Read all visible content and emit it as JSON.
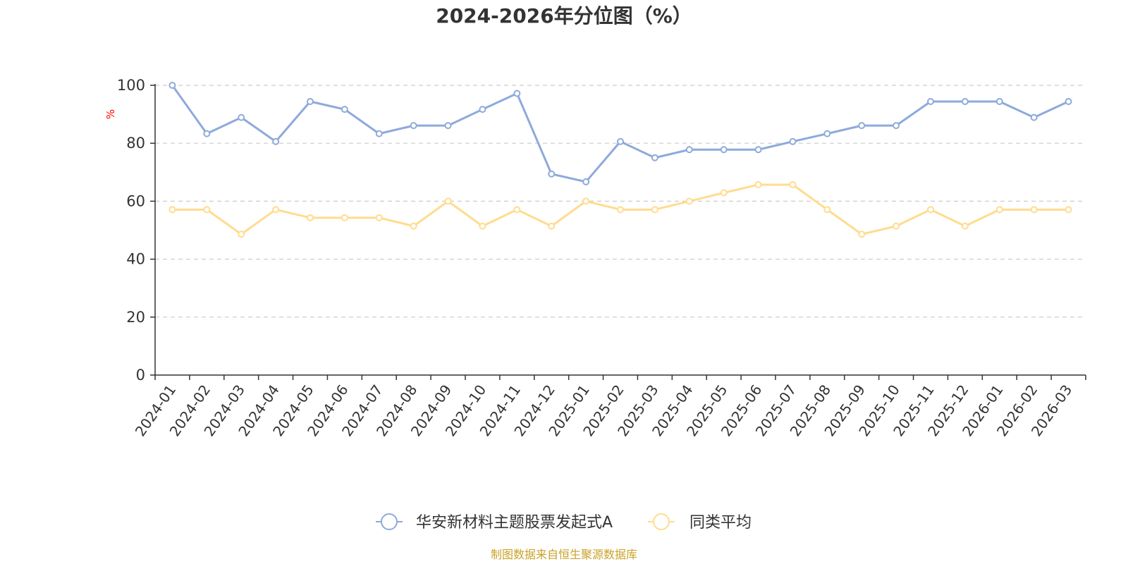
{
  "chart_data": {
    "type": "line",
    "title": "2024-2026年分位图（%）",
    "xlabel": "",
    "ylabel": "%",
    "ylim": [
      0,
      100
    ],
    "yticks": [
      0,
      20,
      40,
      60,
      80,
      100
    ],
    "grid": true,
    "legend_position": "bottom-center",
    "categories": [
      "2024-01",
      "2024-02",
      "2024-03",
      "2024-04",
      "2024-05",
      "2024-06",
      "2024-07",
      "2024-08",
      "2024-09",
      "2024-10",
      "2024-11",
      "2024-12",
      "2025-01",
      "2025-02",
      "2025-03",
      "2025-04",
      "2025-05",
      "2025-06",
      "2025-07",
      "2025-08",
      "2025-09",
      "2025-10",
      "2025-11",
      "2025-12",
      "2026-01",
      "2026-02",
      "2026-03"
    ],
    "series": [
      {
        "name": "华安新材料主题股票发起式A",
        "color": "#8eaadb",
        "values": [
          100,
          83.3,
          88.9,
          80.6,
          94.4,
          91.7,
          83.3,
          86.1,
          86.1,
          91.7,
          97.2,
          69.4,
          66.7,
          80.6,
          75.0,
          77.8,
          77.8,
          77.8,
          80.6,
          83.3,
          86.1,
          86.1,
          94.4,
          94.4,
          94.4,
          88.9,
          94.4
        ]
      },
      {
        "name": "同类平均",
        "color": "#ffdc8e",
        "values": [
          57.1,
          57.1,
          48.6,
          57.1,
          54.3,
          54.3,
          54.3,
          51.4,
          60.0,
          51.4,
          57.1,
          51.4,
          60.0,
          57.1,
          57.1,
          60.0,
          62.9,
          65.7,
          65.7,
          57.1,
          48.6,
          51.4,
          57.1,
          51.4,
          57.1,
          57.1,
          57.1
        ]
      }
    ],
    "source": "制图数据来自恒生聚源数据库",
    "ylabel_color": "#ff0000",
    "source_color": "#c9a227"
  }
}
